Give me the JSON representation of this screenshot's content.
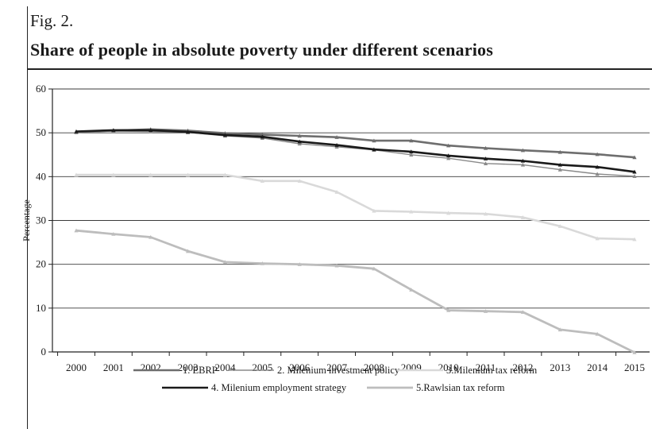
{
  "header": {
    "fig_label": "Fig. 2.",
    "title": "Share of people in absolute poverty under different scenarios"
  },
  "chart_data": {
    "type": "line",
    "ylabel": "Percentage",
    "xlabel": "",
    "ylim": [
      0,
      60
    ],
    "yticks": [
      0,
      10,
      20,
      30,
      40,
      50,
      60
    ],
    "grid": true,
    "legend_placement": "bottom",
    "x": [
      "2000",
      "2001",
      "2002",
      "2003",
      "2004",
      "2005",
      "2006",
      "2007",
      "2008",
      "2009",
      "2010",
      "2011",
      "2012",
      "2013",
      "2014",
      "2015"
    ],
    "series": [
      {
        "name": "1. EBRP",
        "color": "#6e6e6e",
        "width": 2.6,
        "values": [
          50.2,
          50.5,
          50.8,
          50.5,
          49.9,
          49.6,
          49.3,
          49.0,
          48.2,
          48.2,
          47.1,
          46.5,
          46.0,
          45.6,
          45.1,
          44.4
        ]
      },
      {
        "name": "2. Milenium investment policy",
        "color": "#8a8a8a",
        "width": 1.4,
        "values": [
          50.1,
          50.4,
          50.3,
          50.1,
          49.3,
          48.8,
          47.5,
          46.8,
          46.1,
          45.0,
          44.2,
          43.0,
          42.7,
          41.6,
          40.6,
          40.1
        ]
      },
      {
        "name": "3.Milenium tax reform",
        "color": "#d9d9d9",
        "width": 2.6,
        "values": [
          40.4,
          40.4,
          40.4,
          40.4,
          40.4,
          39.0,
          39.0,
          36.5,
          32.2,
          32.0,
          31.7,
          31.5,
          30.7,
          28.7,
          25.9,
          25.7
        ]
      },
      {
        "name": "4. Milenium employment strategy",
        "color": "#1a1a1a",
        "width": 2.6,
        "values": [
          50.3,
          50.6,
          50.6,
          50.2,
          49.5,
          49.1,
          48.0,
          47.2,
          46.2,
          45.7,
          44.8,
          44.1,
          43.6,
          42.7,
          42.2,
          41.1
        ]
      },
      {
        "name": "5.Rawlsian tax reform",
        "color": "#bdbdbd",
        "width": 2.8,
        "values": [
          27.7,
          26.9,
          26.2,
          23.0,
          20.5,
          20.2,
          20.0,
          19.7,
          19.0,
          14.2,
          9.5,
          9.3,
          9.1,
          5.1,
          4.1,
          -0.1
        ]
      }
    ]
  }
}
